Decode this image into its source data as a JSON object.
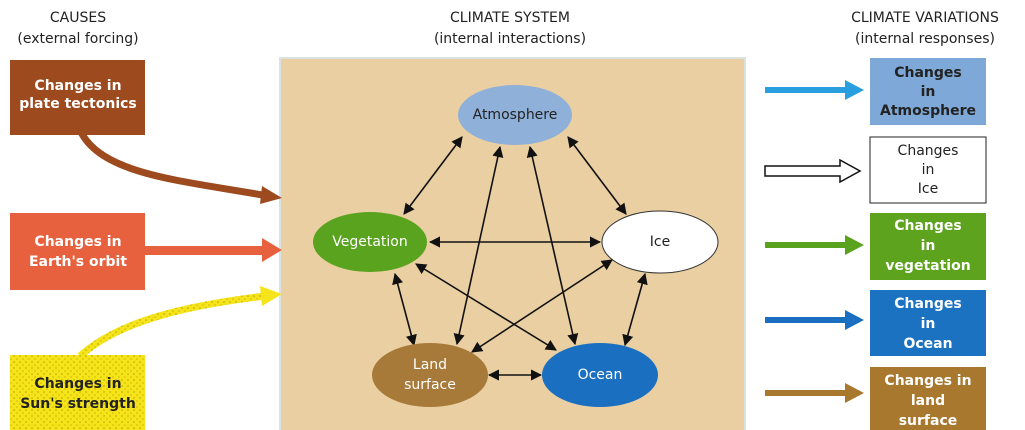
{
  "headers": [
    {
      "title": "CAUSES",
      "subtitle": "(external forcing)"
    },
    {
      "title": "CLIMATE SYSTEM",
      "subtitle": "(internal interactions)"
    },
    {
      "title": "CLIMATE VARIATIONS",
      "subtitle": "(internal responses)"
    }
  ],
  "causes": [
    {
      "lines": [
        "Changes in",
        "plate tectonics"
      ]
    },
    {
      "lines": [
        "Changes in",
        "Earth's orbit"
      ]
    },
    {
      "lines": [
        "Changes in",
        "Sun's strength"
      ]
    }
  ],
  "nodes": [
    {
      "lines": [
        "Atmosphere"
      ]
    },
    {
      "lines": [
        "Vegetation"
      ]
    },
    {
      "lines": [
        "Ice"
      ]
    },
    {
      "lines": [
        "Land",
        "surface"
      ]
    },
    {
      "lines": [
        "Ocean"
      ]
    }
  ],
  "variations": [
    {
      "lines": [
        "Changes",
        "in",
        "Atmosphere"
      ]
    },
    {
      "lines": [
        "Changes",
        "in",
        "Ice"
      ]
    },
    {
      "lines": [
        "Changes",
        "in",
        "vegetation"
      ]
    },
    {
      "lines": [
        "Changes",
        "in",
        "Ocean"
      ]
    },
    {
      "lines": [
        "Changes in",
        "land",
        "surface"
      ]
    }
  ]
}
